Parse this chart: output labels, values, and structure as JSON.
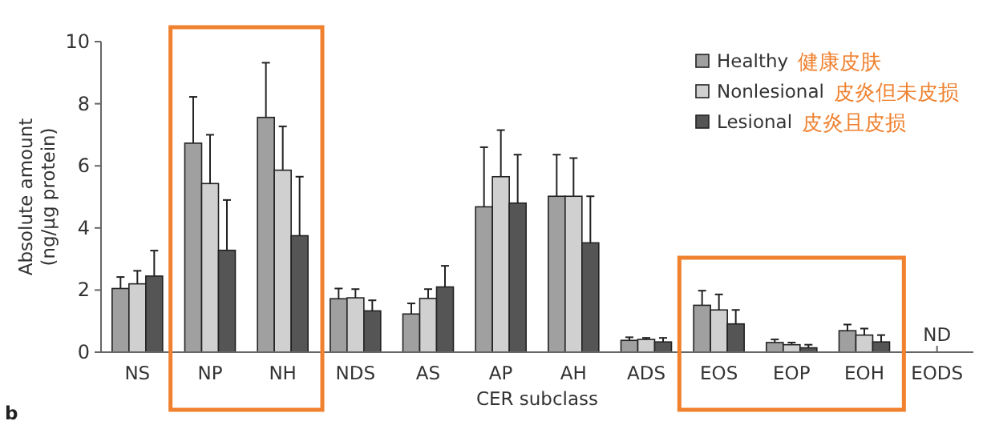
{
  "chart_data": {
    "type": "bar",
    "xlabel": "CER subclass",
    "ylabel": "Absolute amount\n(ng/µg protein)",
    "categories": [
      "NS",
      "NP",
      "NH",
      "NDS",
      "AS",
      "AP",
      "AH",
      "ADS",
      "EOS",
      "EOP",
      "EOH",
      "EODS"
    ],
    "series": [
      {
        "name": "Healthy",
        "color": "#a0a0a0",
        "values": [
          2.05,
          6.73,
          7.56,
          1.72,
          1.23,
          4.68,
          5.02,
          0.38,
          1.51,
          0.31,
          0.69,
          null
        ],
        "errors": [
          0.37,
          1.49,
          1.76,
          0.33,
          0.34,
          1.92,
          1.34,
          0.1,
          0.47,
          0.1,
          0.2,
          null
        ]
      },
      {
        "name": "Nonlesional",
        "color": "#d0d0d0",
        "values": [
          2.2,
          5.43,
          5.86,
          1.75,
          1.73,
          5.65,
          5.02,
          0.41,
          1.36,
          0.24,
          0.55,
          null
        ],
        "errors": [
          0.42,
          1.57,
          1.41,
          0.28,
          0.3,
          1.5,
          1.23,
          0.05,
          0.5,
          0.07,
          0.21,
          null
        ]
      },
      {
        "name": "Lesional",
        "color": "#555555",
        "values": [
          2.45,
          3.28,
          3.75,
          1.33,
          2.1,
          4.8,
          3.52,
          0.33,
          0.91,
          0.14,
          0.33,
          null
        ],
        "errors": [
          0.82,
          1.62,
          1.9,
          0.34,
          0.68,
          1.56,
          1.5,
          0.13,
          0.45,
          0.1,
          0.22,
          null
        ]
      }
    ],
    "ylim": [
      0,
      10
    ],
    "yticks": [
      0,
      2,
      4,
      6,
      8,
      10
    ],
    "legend": "top right",
    "grid": false,
    "annotations": [
      "健康皮肤",
      "皮炎但未皮损",
      "皮炎且皮损",
      "ND",
      "b"
    ]
  }
}
